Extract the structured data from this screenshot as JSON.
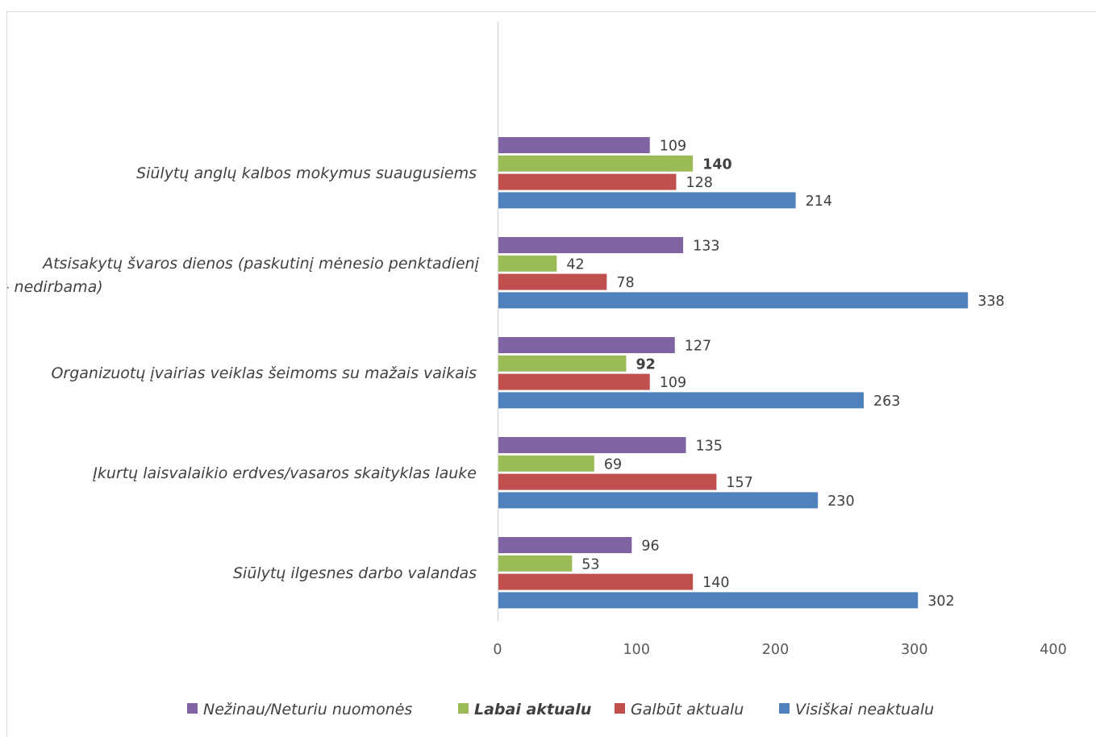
{
  "chart_data": {
    "type": "bar",
    "orientation": "horizontal",
    "categories": [
      "Siūlytų anglų kalbos mokymus suaugusiems",
      "Atsisakytų švaros dienos (paskutinį mėnesio penktadienį – nedirbama)",
      "Organizuotų įvairias veiklas šeimoms su mažais vaikais",
      "Įkurtų laisvalaikio erdves/vasaros skaityklas lauke",
      "Siūlytų ilgesnes darbo valandas"
    ],
    "category_lines": [
      [
        "Siūlytų anglų kalbos mokymus suaugusiems"
      ],
      [
        "Atsisakytų švaros dienos (paskutinį mėnesio penktadienį",
        "– nedirbama)"
      ],
      [
        "Organizuotų įvairias veiklas šeimoms su mažais vaikais"
      ],
      [
        "Įkurtų laisvalaikio erdves/vasaros skaityklas lauke"
      ],
      [
        "Siūlytų ilgesnes darbo valandas"
      ]
    ],
    "series": [
      {
        "name": "Nežinau/Neturiu nuomonės",
        "color": "#8064a2",
        "values": [
          109,
          133,
          127,
          135,
          96
        ],
        "bold_labels": [
          false,
          false,
          false,
          false,
          false
        ]
      },
      {
        "name": "Labai aktualu",
        "color": "#9bbb59",
        "values": [
          140,
          42,
          92,
          69,
          53
        ],
        "bold_labels": [
          true,
          false,
          true,
          false,
          false
        ],
        "legend_bold": true
      },
      {
        "name": "Galbūt aktualu",
        "color": "#c0504d",
        "values": [
          128,
          78,
          109,
          157,
          140
        ],
        "bold_labels": [
          false,
          false,
          false,
          false,
          false
        ]
      },
      {
        "name": "Visiškai neaktualu",
        "color": "#4f81bd",
        "values": [
          214,
          338,
          263,
          230,
          302
        ],
        "bold_labels": [
          false,
          false,
          false,
          false,
          false
        ]
      }
    ],
    "xlim": [
      0,
      400
    ],
    "xticks": [
      0,
      100,
      200,
      300,
      400
    ],
    "legend_position": "bottom",
    "grid": false
  }
}
